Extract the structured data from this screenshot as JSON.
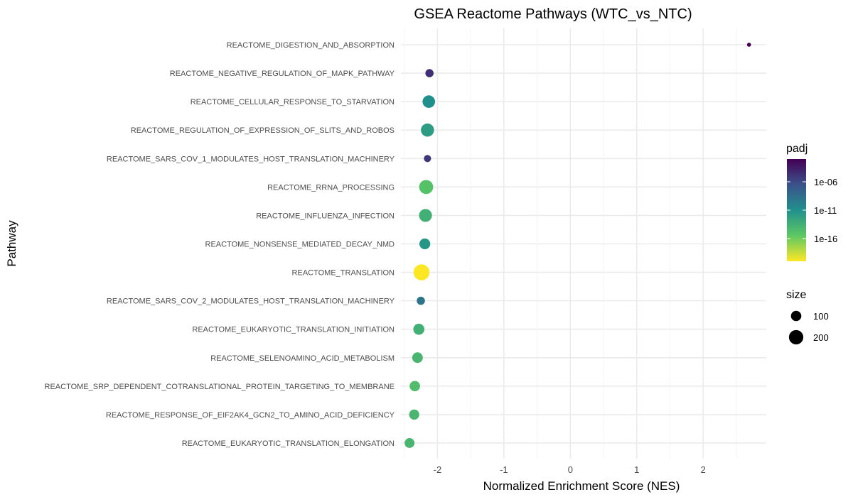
{
  "chart_data": {
    "type": "scatter",
    "title": "GSEA Reactome Pathways (WTC_vs_NTC)",
    "xlabel": "Normalized Enrichment Score (NES)",
    "ylabel": "Pathway",
    "xlim": [
      -2.55,
      2.95
    ],
    "xticks": [
      -2,
      -1,
      0,
      1,
      2
    ],
    "xtick_labels": [
      "-2",
      "-1",
      "0",
      "1",
      "2"
    ],
    "grid": true,
    "categories": [
      "REACTOME_DIGESTION_AND_ABSORPTION",
      "REACTOME_NEGATIVE_REGULATION_OF_MAPK_PATHWAY",
      "REACTOME_CELLULAR_RESPONSE_TO_STARVATION",
      "REACTOME_REGULATION_OF_EXPRESSION_OF_SLITS_AND_ROBOS",
      "REACTOME_SARS_COV_1_MODULATES_HOST_TRANSLATION_MACHINERY",
      "REACTOME_RRNA_PROCESSING",
      "REACTOME_INFLUENZA_INFECTION",
      "REACTOME_NONSENSE_MEDIATED_DECAY_NMD",
      "REACTOME_TRANSLATION",
      "REACTOME_SARS_COV_2_MODULATES_HOST_TRANSLATION_MACHINERY",
      "REACTOME_EUKARYOTIC_TRANSLATION_INITIATION",
      "REACTOME_SELENOAMINO_ACID_METABOLISM",
      "REACTOME_SRP_DEPENDENT_COTRANSLATIONAL_PROTEIN_TARGETING_TO_MEMBRANE",
      "REACTOME_RESPONSE_OF_EIF2AK4_GCN2_TO_AMINO_ACID_DEFICIENCY",
      "REACTOME_EUKARYOTIC_TRANSLATION_ELONGATION"
    ],
    "points": [
      {
        "pathway": "REACTOME_DIGESTION_AND_ABSORPTION",
        "nes": 2.69,
        "size": 12,
        "padj_log10": -2.0
      },
      {
        "pathway": "REACTOME_NEGATIVE_REGULATION_OF_MAPK_PATHWAY",
        "nes": -2.12,
        "size": 60,
        "padj_log10": -4.5
      },
      {
        "pathway": "REACTOME_CELLULAR_RESPONSE_TO_STARVATION",
        "nes": -2.13,
        "size": 150,
        "padj_log10": -11.0
      },
      {
        "pathway": "REACTOME_REGULATION_OF_EXPRESSION_OF_SLITS_AND_ROBOS",
        "nes": -2.15,
        "size": 165,
        "padj_log10": -12.0
      },
      {
        "pathway": "REACTOME_SARS_COV_1_MODULATES_HOST_TRANSLATION_MACHINERY",
        "nes": -2.15,
        "size": 45,
        "padj_log10": -5.0
      },
      {
        "pathway": "REACTOME_RRNA_PROCESSING",
        "nes": -2.17,
        "size": 190,
        "padj_log10": -15.0
      },
      {
        "pathway": "REACTOME_INFLUENZA_INFECTION",
        "nes": -2.18,
        "size": 160,
        "padj_log10": -13.5
      },
      {
        "pathway": "REACTOME_NONSENSE_MEDIATED_DECAY_NMD",
        "nes": -2.19,
        "size": 110,
        "padj_log10": -11.5
      },
      {
        "pathway": "REACTOME_TRANSLATION",
        "nes": -2.24,
        "size": 250,
        "padj_log10": -21.5
      },
      {
        "pathway": "REACTOME_SARS_COV_2_MODULATES_HOST_TRANSLATION_MACHINERY",
        "nes": -2.25,
        "size": 60,
        "padj_log10": -9.0
      },
      {
        "pathway": "REACTOME_EUKARYOTIC_TRANSLATION_INITIATION",
        "nes": -2.28,
        "size": 115,
        "padj_log10": -13.5
      },
      {
        "pathway": "REACTOME_SELENOAMINO_ACID_METABOLISM",
        "nes": -2.3,
        "size": 105,
        "padj_log10": -14.0
      },
      {
        "pathway": "REACTOME_SRP_DEPENDENT_COTRANSLATIONAL_PROTEIN_TARGETING_TO_MEMBRANE",
        "nes": -2.34,
        "size": 100,
        "padj_log10": -14.5
      },
      {
        "pathway": "REACTOME_RESPONSE_OF_EIF2AK4_GCN2_TO_AMINO_ACID_DEFICIENCY",
        "nes": -2.35,
        "size": 95,
        "padj_log10": -14.0
      },
      {
        "pathway": "REACTOME_EUKARYOTIC_TRANSLATION_ELONGATION",
        "nes": -2.42,
        "size": 90,
        "padj_log10": -14.0
      }
    ],
    "color_legend": {
      "title": "padj",
      "log10_range": [
        -20,
        -2
      ],
      "breaks_log10": [
        -6,
        -11,
        -16
      ],
      "labels": [
        "1e-06",
        "1e-11",
        "1e-16"
      ],
      "palette": [
        "#440154",
        "#3b528b",
        "#21908c",
        "#5dc863",
        "#fde725"
      ]
    },
    "size_legend": {
      "title": "size",
      "breaks": [
        100,
        200
      ],
      "labels": [
        "100",
        "200"
      ]
    }
  }
}
